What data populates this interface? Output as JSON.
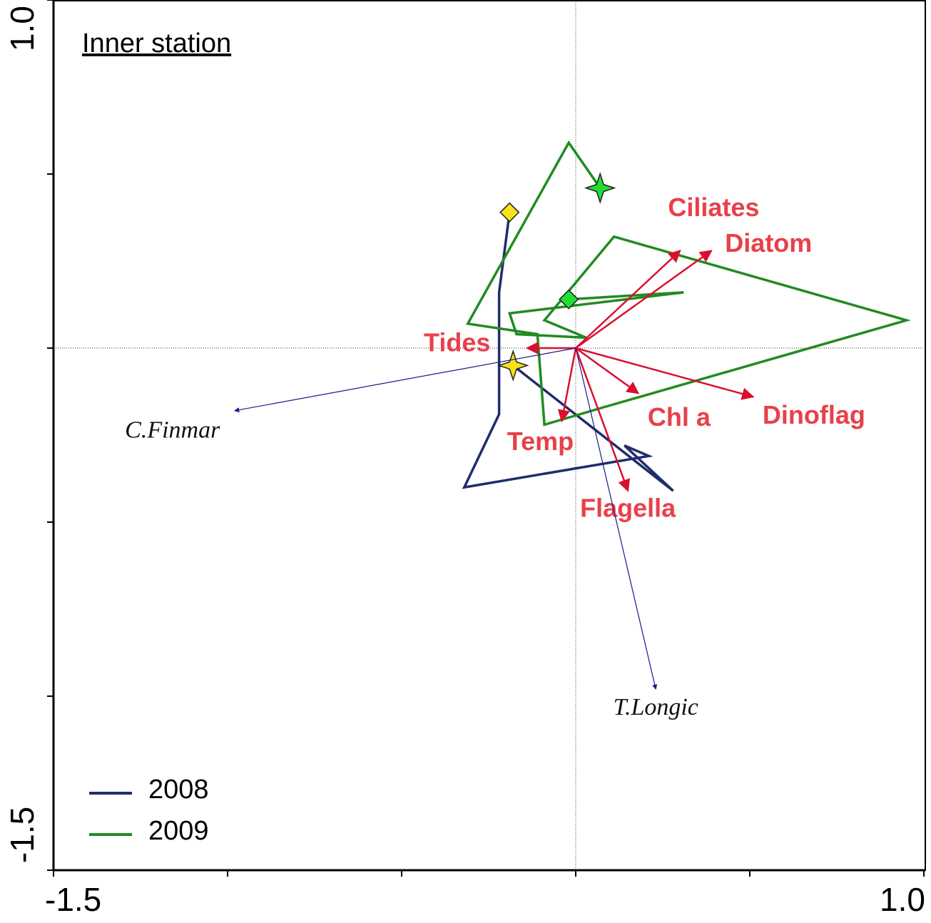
{
  "chart_data": {
    "type": "biplot",
    "title": "Inner station",
    "xlim": [
      -1.5,
      1
    ],
    "ylim": [
      -1.5,
      1
    ],
    "xticks": [
      -1.5,
      {
        "value": 1,
        "label": "1.0"
      }
    ],
    "xminorticks": [
      -1,
      -0.5,
      0,
      0.5
    ],
    "yticks": [
      -1.5,
      {
        "value": 1,
        "label": "1.0"
      }
    ],
    "yminorticks": [
      -1,
      -0.5,
      0,
      0.5
    ],
    "origin_lines": true,
    "legend": "lower left",
    "series": [
      {
        "name": "2008",
        "color": "#1f2d6b",
        "marker_color": "#f7e31b",
        "x": [
          -0.19,
          -0.22,
          -0.22,
          -0.32,
          0.21,
          0.14,
          0.28,
          -0.18
        ],
        "y": [
          0.39,
          0.16,
          -0.19,
          -0.4,
          -0.31,
          -0.28,
          -0.41,
          -0.05
        ]
      },
      {
        "name": "2009",
        "color": "#228b22",
        "marker_color": "#22dd33",
        "x": [
          -0.02,
          0.31,
          -0.19,
          -0.17,
          0.03,
          -0.09,
          0.11,
          0.95,
          0.08,
          -0.09,
          -0.11,
          -0.31,
          -0.02,
          0.07
        ],
        "y": [
          0.14,
          0.16,
          0.1,
          0.04,
          0.03,
          0.08,
          0.32,
          0.08,
          -0.17,
          -0.22,
          0.04,
          0.07,
          0.59,
          0.46
        ]
      }
    ],
    "environment": {
      "color": "#d9102e",
      "label_color": "#e8404a",
      "values": [
        {
          "label": "Ciliates",
          "x": 0.3,
          "y": 0.28
        },
        {
          "label": "Diatom",
          "x": 0.39,
          "y": 0.28
        },
        {
          "label": "Tides",
          "x": -0.14,
          "y": 0.0
        },
        {
          "label": "Dinoflag",
          "x": 0.51,
          "y": -0.14
        },
        {
          "label": "Chl a",
          "x": 0.18,
          "y": -0.13
        },
        {
          "label": "Temp",
          "x": -0.04,
          "y": -0.21
        },
        {
          "label": "Flagella",
          "x": 0.15,
          "y": -0.41
        }
      ]
    },
    "species": {
      "color": "#1a1a8c",
      "values": [
        {
          "label": "C.Finmar",
          "x": -0.98,
          "y": -0.18
        },
        {
          "label": "T.Longic",
          "x": 0.23,
          "y": -0.98
        }
      ]
    }
  }
}
